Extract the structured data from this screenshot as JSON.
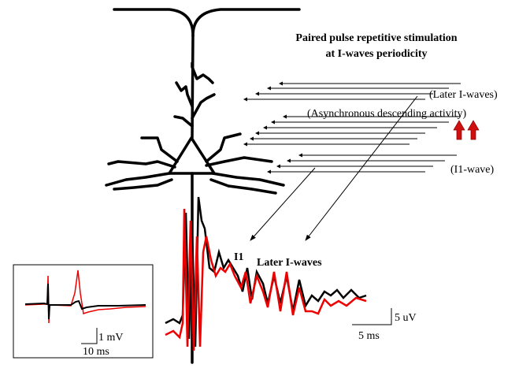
{
  "title": {
    "line1": "Paired pulse repetitive stimulation",
    "line2": "at I-waves periodicity"
  },
  "labels": {
    "later": "(Later I-waves)",
    "async": "(Asynchronous descending activity)",
    "i1wave": "(I1-wave)",
    "i1": "I1",
    "laterBold": "Later I-waves"
  },
  "scale_main": {
    "y": "5 uV",
    "x": "5 ms"
  },
  "scale_inset": {
    "y": "1 mV",
    "x": "10 ms"
  }
}
